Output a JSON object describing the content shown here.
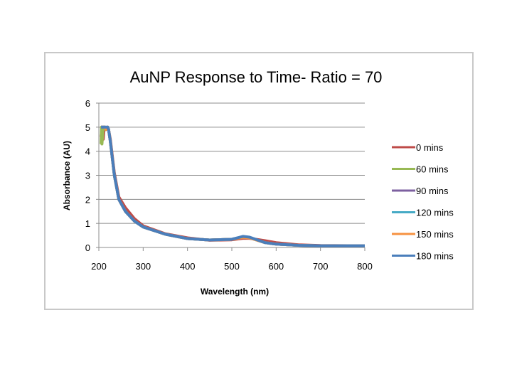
{
  "chart_data": {
    "type": "line",
    "title": "AuNP Response to Time- Ratio = 70",
    "xlabel": "Wavelength (nm)",
    "ylabel": "Absorbance (AU)",
    "xlim": [
      200,
      800
    ],
    "ylim": [
      0,
      6
    ],
    "xticks": [
      "200",
      "300",
      "400",
      "500",
      "600",
      "700",
      "800"
    ],
    "yticks": [
      "0",
      "1",
      "2",
      "3",
      "4",
      "5",
      "6"
    ],
    "grid": "horizontal",
    "legend_position": "right",
    "series": [
      {
        "name": "0 mins",
        "color": "#be4b48",
        "x": [
          205,
          207,
          210,
          212,
          214,
          216,
          220,
          222,
          226,
          235,
          245,
          260,
          280,
          300,
          350,
          400,
          450,
          500,
          525,
          540,
          575,
          600,
          650,
          700,
          800
        ],
        "y": [
          4.6,
          5,
          4.5,
          5,
          5,
          4.9,
          5,
          4.9,
          4.5,
          3.1,
          2.1,
          1.65,
          1.2,
          0.9,
          0.57,
          0.4,
          0.3,
          0.32,
          0.38,
          0.38,
          0.28,
          0.2,
          0.11,
          0.08,
          0.07
        ]
      },
      {
        "name": "60 mins",
        "color": "#98b954",
        "x": [
          205,
          206,
          207,
          210,
          214,
          216,
          220,
          222,
          226,
          235,
          245,
          260,
          280,
          300,
          350,
          400,
          450,
          500,
          525,
          540,
          575,
          600,
          650,
          700,
          800
        ],
        "y": [
          4.3,
          5,
          4.3,
          5,
          5,
          4.9,
          5,
          4.9,
          4.4,
          3,
          2,
          1.5,
          1.1,
          0.85,
          0.55,
          0.37,
          0.31,
          0.34,
          0.43,
          0.4,
          0.2,
          0.14,
          0.09,
          0.07,
          0.07
        ]
      },
      {
        "name": "90 mins",
        "color": "#7d60a0",
        "x": [
          205,
          210,
          214,
          216,
          220,
          222,
          226,
          235,
          245,
          260,
          280,
          300,
          350,
          400,
          450,
          500,
          525,
          540,
          575,
          600,
          650,
          700,
          800
        ],
        "y": [
          5,
          5,
          5,
          4.9,
          5,
          4.9,
          4.4,
          3,
          2,
          1.5,
          1.1,
          0.85,
          0.55,
          0.37,
          0.31,
          0.34,
          0.44,
          0.41,
          0.2,
          0.14,
          0.09,
          0.07,
          0.07
        ]
      },
      {
        "name": "120 mins",
        "color": "#46aac5",
        "x": [
          205,
          210,
          214,
          216,
          220,
          222,
          226,
          235,
          245,
          260,
          280,
          300,
          350,
          400,
          450,
          500,
          525,
          540,
          575,
          600,
          650,
          700,
          800
        ],
        "y": [
          5,
          5,
          5,
          4.9,
          5,
          4.9,
          4.4,
          3,
          2,
          1.5,
          1.1,
          0.85,
          0.55,
          0.37,
          0.31,
          0.34,
          0.45,
          0.42,
          0.2,
          0.14,
          0.09,
          0.07,
          0.07
        ]
      },
      {
        "name": "150 mins",
        "color": "#f69240",
        "x": [
          205,
          210,
          214,
          216,
          220,
          222,
          226,
          235,
          245,
          260,
          280,
          300,
          350,
          400,
          450,
          500,
          525,
          540,
          575,
          600,
          650,
          700,
          800
        ],
        "y": [
          5,
          5,
          5,
          4.9,
          5,
          4.9,
          4.4,
          3,
          2,
          1.5,
          1.1,
          0.85,
          0.55,
          0.37,
          0.31,
          0.34,
          0.42,
          0.4,
          0.2,
          0.14,
          0.09,
          0.07,
          0.07
        ]
      },
      {
        "name": "180 mins",
        "color": "#4a7ebb",
        "x": [
          205,
          210,
          214,
          216,
          220,
          222,
          226,
          235,
          245,
          260,
          280,
          300,
          350,
          400,
          450,
          500,
          525,
          540,
          575,
          600,
          650,
          700,
          800
        ],
        "y": [
          5,
          5,
          5,
          5,
          5,
          4.9,
          4.4,
          3,
          2,
          1.5,
          1.1,
          0.85,
          0.55,
          0.37,
          0.31,
          0.34,
          0.46,
          0.43,
          0.2,
          0.14,
          0.09,
          0.07,
          0.07
        ]
      }
    ]
  }
}
